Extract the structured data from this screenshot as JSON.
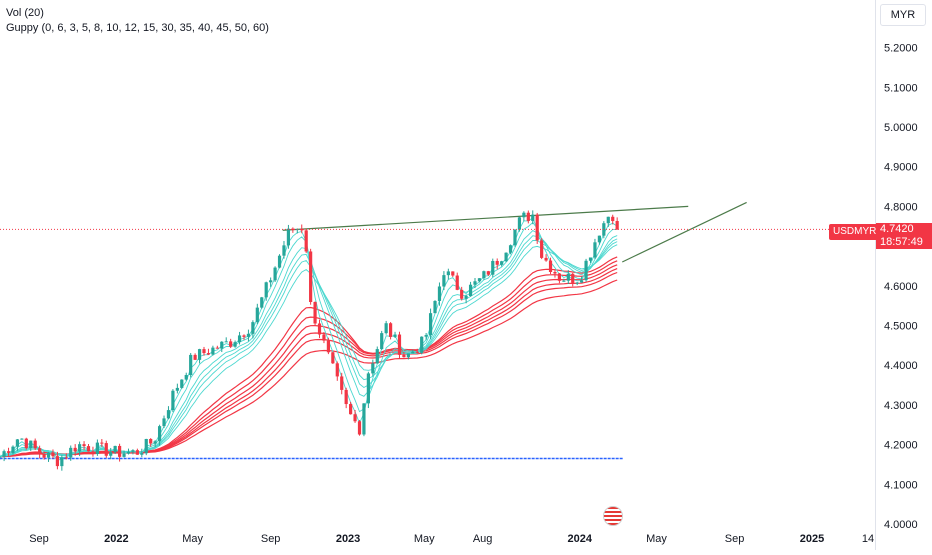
{
  "legend": {
    "volume": "Vol (20)",
    "guppy": "Guppy (0, 6, 3, 5, 8, 10, 12, 15, 30, 35, 40, 45, 50, 60)"
  },
  "currency_button": "MYR",
  "symbol_tag": "USDMYR",
  "last_price": "4.7420",
  "countdown": "18:57:49",
  "colors": {
    "up": "#26a69a",
    "down": "#f23645",
    "fast_ema": "#4dd8d0",
    "slow_ema": "#f23645",
    "trendline": "#4c7b4a",
    "support": "#2962ff"
  },
  "chart_data": {
    "type": "candlestick",
    "symbol": "USDMYR",
    "ylim": [
      4.0,
      5.3
    ],
    "y_ticks": [
      "5.2000",
      "5.1000",
      "5.0000",
      "4.9000",
      "4.8000",
      "4.6000",
      "4.5000",
      "4.4000",
      "4.3000",
      "4.2000",
      "4.1000",
      "4.0000"
    ],
    "x_ticks": [
      {
        "label": "Sep",
        "date": "2021-09",
        "bold": false
      },
      {
        "label": "2022",
        "date": "2022-01",
        "bold": true
      },
      {
        "label": "May",
        "date": "2022-05",
        "bold": false
      },
      {
        "label": "Sep",
        "date": "2022-09",
        "bold": false
      },
      {
        "label": "2023",
        "date": "2023-01",
        "bold": true
      },
      {
        "label": "May",
        "date": "2023-05",
        "bold": false
      },
      {
        "label": "Aug",
        "date": "2023-08",
        "bold": false
      },
      {
        "label": "2024",
        "date": "2024-01",
        "bold": true
      },
      {
        "label": "May",
        "date": "2024-05",
        "bold": false
      },
      {
        "label": "Sep",
        "date": "2024-09",
        "bold": false
      },
      {
        "label": "2025",
        "date": "2025-01",
        "bold": true
      },
      {
        "label": "14",
        "date": "2025-04",
        "bold": false
      }
    ],
    "close_path": [
      [
        "2021-07",
        4.17
      ],
      [
        "2021-08",
        4.22
      ],
      [
        "2021-09",
        4.18
      ],
      [
        "2021-10",
        4.16
      ],
      [
        "2021-11",
        4.2
      ],
      [
        "2021-12",
        4.19
      ],
      [
        "2022-01",
        4.18
      ],
      [
        "2022-02",
        4.18
      ],
      [
        "2022-03",
        4.21
      ],
      [
        "2022-04",
        4.33
      ],
      [
        "2022-05",
        4.42
      ],
      [
        "2022-06",
        4.44
      ],
      [
        "2022-07",
        4.46
      ],
      [
        "2022-08",
        4.5
      ],
      [
        "2022-09",
        4.62
      ],
      [
        "2022-10",
        4.74
      ],
      [
        "2022-10-25",
        4.75
      ],
      [
        "2022-11",
        4.56
      ],
      [
        "2022-12",
        4.42
      ],
      [
        "2023-01",
        4.28
      ],
      [
        "2023-01-20",
        4.24
      ],
      [
        "2023-02",
        4.38
      ],
      [
        "2023-03",
        4.5
      ],
      [
        "2023-04",
        4.42
      ],
      [
        "2023-05",
        4.46
      ],
      [
        "2023-06",
        4.64
      ],
      [
        "2023-07",
        4.58
      ],
      [
        "2023-08",
        4.62
      ],
      [
        "2023-09",
        4.68
      ],
      [
        "2023-10",
        4.77
      ],
      [
        "2023-10-20",
        4.78
      ],
      [
        "2023-11",
        4.68
      ],
      [
        "2023-12",
        4.62
      ],
      [
        "2024-01",
        4.62
      ],
      [
        "2024-02",
        4.74
      ],
      [
        "2024-02-20",
        4.79
      ],
      [
        "2024-03",
        4.742
      ]
    ],
    "last_price": 4.742,
    "trendlines": [
      {
        "name": "resistance",
        "from": [
          "2022-09-20",
          4.74
        ],
        "to": [
          "2024-06-20",
          4.8
        ]
      },
      {
        "name": "rising-support",
        "from": [
          "2024-03-08",
          4.66
        ],
        "to": [
          "2024-09-20",
          4.81
        ]
      },
      {
        "name": "support",
        "from": [
          "2021-07-01",
          4.165
        ],
        "to": [
          "2024-03-10",
          4.165
        ]
      }
    ]
  }
}
